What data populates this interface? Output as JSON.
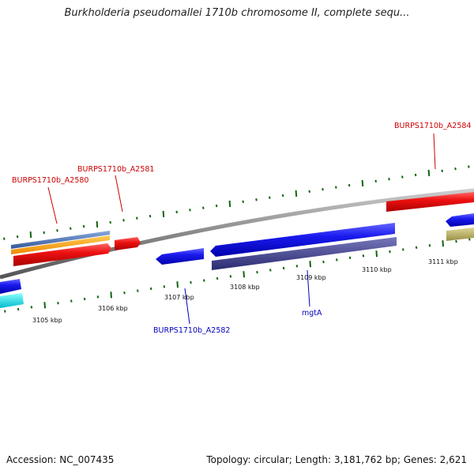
{
  "header": {
    "title": "Burkholderia pseudomallei 1710b chromosome II, complete sequ..."
  },
  "footer": {
    "accession": "Accession: NC_007435",
    "topology": "Topology: circular; Length: 3,181,762 bp; Genes: 2,621"
  },
  "ruler": {
    "ticks": [
      {
        "label": "3105 kbp"
      },
      {
        "label": "3106 kbp"
      },
      {
        "label": "3107 kbp"
      },
      {
        "label": "3108 kbp"
      },
      {
        "label": "3109 kbp"
      },
      {
        "label": "3110 kbp"
      },
      {
        "label": "3111 kbp"
      }
    ]
  },
  "colors": {
    "forward_gene": "#ee1111",
    "reverse_gene": "#1a1aee",
    "rna_orange": "#ff9911",
    "rna_steelblue": "#4477bb",
    "cyan": "#00dddd",
    "olive": "#bbb066",
    "slate": "#3a3a88",
    "backbone": "#888888",
    "gc_ticks": "#116611",
    "label_forward": "#cc0000",
    "label_reverse": "#0000bb"
  },
  "genes": [
    {
      "label": "BURPS1710b_A2584",
      "strand": "forward",
      "color": "#cc0000"
    },
    {
      "label": "BURPS1710b_A2581",
      "strand": "forward",
      "color": "#cc0000"
    },
    {
      "label": "BURPS1710b_A2580",
      "strand": "forward",
      "color": "#cc0000"
    },
    {
      "label": "BURPS1710b_A2582",
      "strand": "reverse",
      "color": "#0000bb"
    },
    {
      "label": "mgtA",
      "strand": "reverse",
      "color": "#0000bb"
    }
  ]
}
